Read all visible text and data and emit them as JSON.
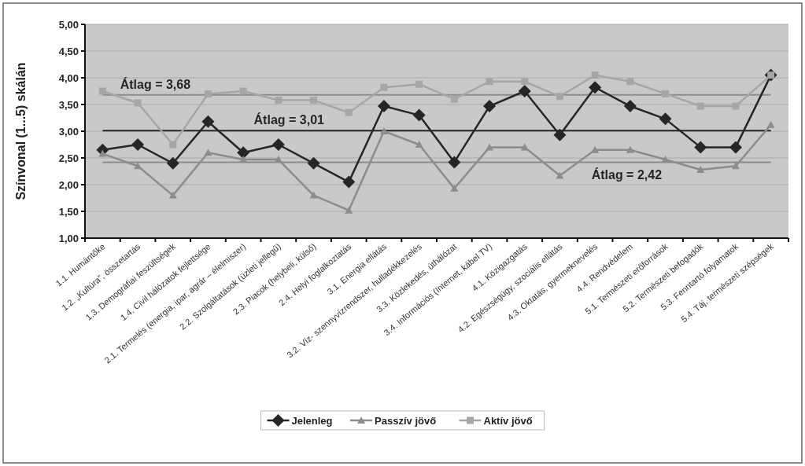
{
  "chart_data": {
    "type": "line",
    "ylabel": "Színvonal (1...5) skálán",
    "categories": [
      "1.1. Humántőke",
      "1.2. „Kultúra”, összetartás",
      "1.3. Demográfiai feszültségek",
      "1.4. Civil hálózatok fejlettsége",
      "2.1. Termelés (energia, ipar, agrár – élelmiszer)",
      "2.2. Szolgáltatások (üzleti jellegű)",
      "2.3. Piacok (helybeli, külső)",
      "2.4. Helyi foglalkoztatás",
      "3.1. Energia ellátás",
      "3.2. Víz- szennyvízrendszer, hulladékkezelés",
      "3.3. Közlekedés, úthálózat",
      "3.4. Információs (Internet, kábel TV)",
      "4.1. Közigazgatás",
      "4.2. Egészségügy, szociális ellátás",
      "4.3. Oktatás, gyermeknevelés",
      "4.4. Rendvédelem",
      "5.1. Természeti erőforrások",
      "5.2. Természeti befogadók",
      "5.3. Fenntartó folyamatok",
      "5.4. Táj, természeti szépségek"
    ],
    "series": [
      {
        "name": "Jelenleg",
        "color": "#262626",
        "marker": "diamond",
        "values": [
          2.65,
          2.75,
          2.4,
          3.18,
          2.6,
          2.75,
          2.4,
          2.05,
          3.47,
          3.3,
          2.42,
          3.47,
          3.75,
          2.93,
          3.82,
          3.47,
          3.23,
          2.7,
          2.7,
          4.05
        ]
      },
      {
        "name": "Passzív jövő",
        "color": "#8c8c8c",
        "marker": "triangle",
        "values": [
          2.58,
          2.35,
          1.8,
          2.6,
          2.47,
          2.47,
          1.8,
          1.52,
          3.0,
          2.75,
          1.93,
          2.7,
          2.7,
          2.17,
          2.65,
          2.65,
          2.47,
          2.28,
          2.35,
          3.12
        ]
      },
      {
        "name": "Aktív jövő",
        "color": "#a6a6a6",
        "marker": "square",
        "values": [
          3.75,
          3.53,
          2.75,
          3.7,
          3.75,
          3.58,
          3.58,
          3.35,
          3.82,
          3.88,
          3.6,
          3.93,
          3.93,
          3.65,
          4.05,
          3.93,
          3.7,
          3.47,
          3.47,
          4.05
        ]
      }
    ],
    "ylim": [
      1,
      5
    ],
    "yticks": [
      {
        "value": 1,
        "label": "1,00"
      },
      {
        "value": 1.5,
        "label": "1,50"
      },
      {
        "value": 2,
        "label": "2,00"
      },
      {
        "value": 2.5,
        "label": "2,50"
      },
      {
        "value": 3,
        "label": "3,00"
      },
      {
        "value": 3.5,
        "label": "3,50"
      },
      {
        "value": 4,
        "label": "4,00"
      },
      {
        "value": 4.5,
        "label": "4,50"
      },
      {
        "value": 5,
        "label": "5,00"
      }
    ],
    "ref_lines": [
      {
        "axis": "y",
        "value": 3.68,
        "label": "Átlag = 3,68",
        "color": "#8c8c8c"
      },
      {
        "axis": "y",
        "value": 3.01,
        "label": "Átlag = 3,01",
        "color": "#262626"
      },
      {
        "axis": "y",
        "value": 2.42,
        "label": "Átlag = 2,42",
        "color": "#8c8c8c"
      }
    ],
    "grid": "y",
    "legend": "bottom"
  }
}
